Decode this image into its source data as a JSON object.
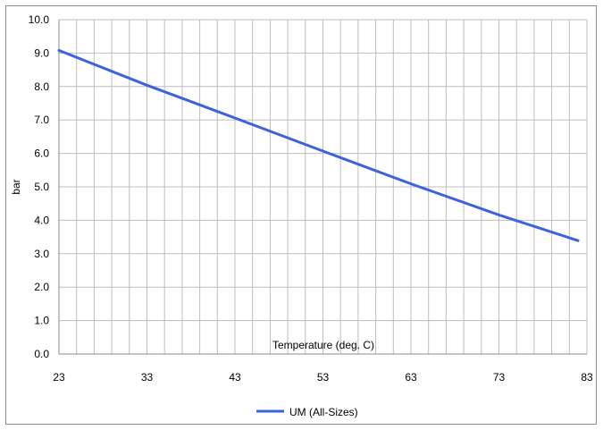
{
  "chart_data": {
    "type": "line",
    "title": "",
    "xlabel": "Temperature (deg. C)",
    "ylabel": "bar",
    "xlim": [
      23,
      83
    ],
    "ylim": [
      0,
      10
    ],
    "x_ticks": [
      23,
      33,
      43,
      53,
      63,
      73,
      83
    ],
    "y_ticks": [
      "0.0",
      "1.0",
      "2.0",
      "3.0",
      "4.0",
      "5.0",
      "6.0",
      "7.0",
      "8.0",
      "9.0",
      "10.0"
    ],
    "x_minor_step": 2,
    "grid": true,
    "legend_position": "bottom-center",
    "series": [
      {
        "name": "UM (All-Sizes)",
        "color": "#3b63e0",
        "x": [
          23,
          33,
          43,
          53,
          63,
          73,
          82
        ],
        "y": [
          9.08,
          8.04,
          7.06,
          6.07,
          5.09,
          4.16,
          3.39
        ]
      }
    ]
  }
}
